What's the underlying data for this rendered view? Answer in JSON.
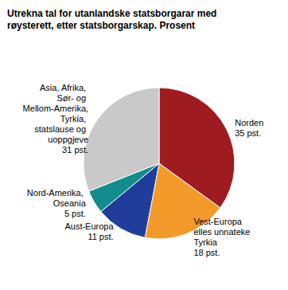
{
  "chart_data": {
    "type": "pie",
    "title": "Utrekna tal for utanlandske statsborgarar med røysterett, etter statsborgarskap. Prosent",
    "categories": [
      "Norden",
      "Vest-Europa elles unnateke Tyrkia",
      "Aust-Europa",
      "Nord-Amerika, Oseania",
      "Asia, Afrika, Sør- og Mellom-Amerika, Tyrkia, statslause og uoppgjeve"
    ],
    "values": [
      35,
      18,
      11,
      5,
      31
    ],
    "value_labels": [
      "35 pst.",
      "18 pst.",
      "11 pst.",
      "5 pst.",
      "31 pst."
    ],
    "colors": [
      "#9e1b20",
      "#f39a2b",
      "#1f3e9c",
      "#128c8c",
      "#c9c9c9"
    ],
    "data_labels": true
  }
}
